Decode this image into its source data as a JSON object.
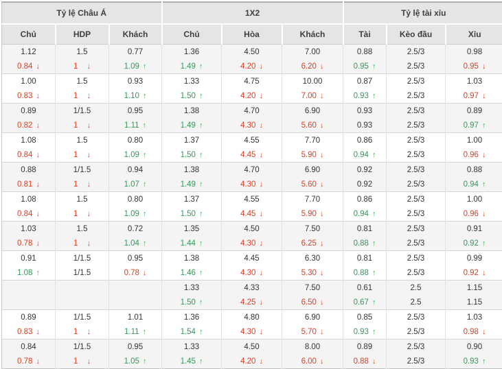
{
  "table": {
    "groups": [
      {
        "label": "Tỷ lệ Châu Á",
        "span": 3
      },
      {
        "label": "1X2",
        "span": 3
      },
      {
        "label": "Tỷ lệ tài xỉu",
        "span": 3
      }
    ],
    "columns": [
      "Chủ",
      "HDP",
      "Khách",
      "Chủ",
      "Hòa",
      "Khách",
      "Tài",
      "Kèo đầu",
      "Xỉu"
    ],
    "column_keys": [
      "asian-home",
      "asian-hdp",
      "asian-away",
      "1x2-home",
      "1x2-draw",
      "1x2-away",
      "ou-over",
      "ou-line",
      "ou-under"
    ],
    "icons": {
      "up": "↑",
      "down": "↓"
    },
    "colors": {
      "up_value": "#2e9b57",
      "down_value": "#df3d20",
      "up_arrow": "#3cb14e",
      "down_arrow": "#e2431e",
      "header_bg": "#e5e5e5",
      "stripe_bg": "#f4f4f4"
    },
    "rows": [
      {
        "open": [
          "1.12",
          "1.5",
          "0.77",
          "1.36",
          "4.50",
          "7.00",
          "0.88",
          "2.5/3",
          "0.98"
        ],
        "live": [
          [
            "0.84",
            "dn"
          ],
          [
            "1",
            "dn"
          ],
          [
            "1.09",
            "up"
          ],
          [
            "1.49",
            "up"
          ],
          [
            "4.20",
            "dn"
          ],
          [
            "6.20",
            "dn"
          ],
          [
            "0.95",
            "up"
          ],
          [
            "2.5/3",
            ""
          ],
          [
            "0.95",
            "dn"
          ]
        ]
      },
      {
        "open": [
          "1.00",
          "1.5",
          "0.93",
          "1.33",
          "4.75",
          "10.00",
          "0.87",
          "2.5/3",
          "1.03"
        ],
        "live": [
          [
            "0.83",
            "dn"
          ],
          [
            "1",
            "dn"
          ],
          [
            "1.10",
            "up"
          ],
          [
            "1.50",
            "up"
          ],
          [
            "4.20",
            "dn"
          ],
          [
            "7.00",
            "dn"
          ],
          [
            "0.93",
            "up"
          ],
          [
            "2.5/3",
            ""
          ],
          [
            "0.97",
            "dn"
          ]
        ]
      },
      {
        "open": [
          "0.89",
          "1/1.5",
          "0.95",
          "1.38",
          "4.70",
          "6.90",
          "0.93",
          "2.5/3",
          "0.89"
        ],
        "live": [
          [
            "0.82",
            "dn"
          ],
          [
            "1",
            "dn"
          ],
          [
            "1.11",
            "up"
          ],
          [
            "1.49",
            "up"
          ],
          [
            "4.30",
            "dn"
          ],
          [
            "5.60",
            "dn"
          ],
          [
            "0.93",
            ""
          ],
          [
            "2.5/3",
            ""
          ],
          [
            "0.97",
            "up"
          ]
        ]
      },
      {
        "open": [
          "1.08",
          "1.5",
          "0.80",
          "1.37",
          "4.55",
          "7.70",
          "0.86",
          "2.5/3",
          "1.00"
        ],
        "live": [
          [
            "0.84",
            "dn"
          ],
          [
            "1",
            "dn"
          ],
          [
            "1.09",
            "up"
          ],
          [
            "1.50",
            "up"
          ],
          [
            "4.45",
            "dn"
          ],
          [
            "5.90",
            "dn"
          ],
          [
            "0.94",
            "up"
          ],
          [
            "2.5/3",
            ""
          ],
          [
            "0.96",
            "dn"
          ]
        ]
      },
      {
        "open": [
          "0.88",
          "1/1.5",
          "0.94",
          "1.38",
          "4.70",
          "6.90",
          "0.92",
          "2.5/3",
          "0.88"
        ],
        "live": [
          [
            "0.81",
            "dn"
          ],
          [
            "1",
            "dn"
          ],
          [
            "1.07",
            "up"
          ],
          [
            "1.49",
            "up"
          ],
          [
            "4.30",
            "dn"
          ],
          [
            "5.60",
            "dn"
          ],
          [
            "0.92",
            ""
          ],
          [
            "2.5/3",
            ""
          ],
          [
            "0.94",
            "up"
          ]
        ]
      },
      {
        "open": [
          "1.08",
          "1.5",
          "0.80",
          "1.37",
          "4.55",
          "7.70",
          "0.86",
          "2.5/3",
          "1.00"
        ],
        "live": [
          [
            "0.84",
            "dn"
          ],
          [
            "1",
            "dn"
          ],
          [
            "1.09",
            "up"
          ],
          [
            "1.50",
            "up"
          ],
          [
            "4.45",
            "dn"
          ],
          [
            "5.90",
            "dn"
          ],
          [
            "0.94",
            "up"
          ],
          [
            "2.5/3",
            ""
          ],
          [
            "0.96",
            "dn"
          ]
        ]
      },
      {
        "open": [
          "1.03",
          "1.5",
          "0.72",
          "1.35",
          "4.50",
          "7.50",
          "0.81",
          "2.5/3",
          "0.91"
        ],
        "live": [
          [
            "0.78",
            "dn"
          ],
          [
            "1",
            "dn"
          ],
          [
            "1.04",
            "up"
          ],
          [
            "1.44",
            "up"
          ],
          [
            "4.30",
            "dn"
          ],
          [
            "6.25",
            "dn"
          ],
          [
            "0.88",
            "up"
          ],
          [
            "2.5/3",
            ""
          ],
          [
            "0.92",
            "up"
          ]
        ]
      },
      {
        "open": [
          "0.91",
          "1/1.5",
          "0.95",
          "1.38",
          "4.45",
          "6.30",
          "0.81",
          "2.5/3",
          "0.99"
        ],
        "live": [
          [
            "1.08",
            "up"
          ],
          [
            "1/1.5",
            ""
          ],
          [
            "0.78",
            "dn"
          ],
          [
            "1.46",
            "up"
          ],
          [
            "4.30",
            "dn"
          ],
          [
            "5.30",
            "dn"
          ],
          [
            "0.88",
            "up"
          ],
          [
            "2.5/3",
            ""
          ],
          [
            "0.92",
            "dn"
          ]
        ]
      },
      {
        "open": [
          "",
          "",
          "",
          "1.33",
          "4.33",
          "7.50",
          "0.61",
          "2.5",
          "1.15"
        ],
        "live": [
          [
            "",
            ""
          ],
          [
            "",
            ""
          ],
          [
            "",
            ""
          ],
          [
            "1.50",
            "up"
          ],
          [
            "4.25",
            "dn"
          ],
          [
            "6.50",
            "dn"
          ],
          [
            "0.67",
            "up"
          ],
          [
            "2.5",
            ""
          ],
          [
            "1.15",
            ""
          ]
        ]
      },
      {
        "open": [
          "0.89",
          "1/1.5",
          "1.01",
          "1.36",
          "4.80",
          "6.90",
          "0.85",
          "2.5/3",
          "1.03"
        ],
        "live": [
          [
            "0.83",
            "dn"
          ],
          [
            "1",
            "dn"
          ],
          [
            "1.11",
            "up"
          ],
          [
            "1.54",
            "up"
          ],
          [
            "4.30",
            "dn"
          ],
          [
            "5.70",
            "dn"
          ],
          [
            "0.93",
            "up"
          ],
          [
            "2.5/3",
            ""
          ],
          [
            "0.98",
            "dn"
          ]
        ]
      },
      {
        "open": [
          "0.84",
          "1/1.5",
          "0.95",
          "1.33",
          "4.50",
          "8.00",
          "0.89",
          "2.5/3",
          "0.90"
        ],
        "live": [
          [
            "0.78",
            "dn"
          ],
          [
            "1",
            "dn"
          ],
          [
            "1.05",
            "up"
          ],
          [
            "1.45",
            "up"
          ],
          [
            "4.20",
            "dn"
          ],
          [
            "6.00",
            "dn"
          ],
          [
            "0.88",
            "dn"
          ],
          [
            "2.5/3",
            ""
          ],
          [
            "0.93",
            "up"
          ]
        ]
      }
    ]
  }
}
